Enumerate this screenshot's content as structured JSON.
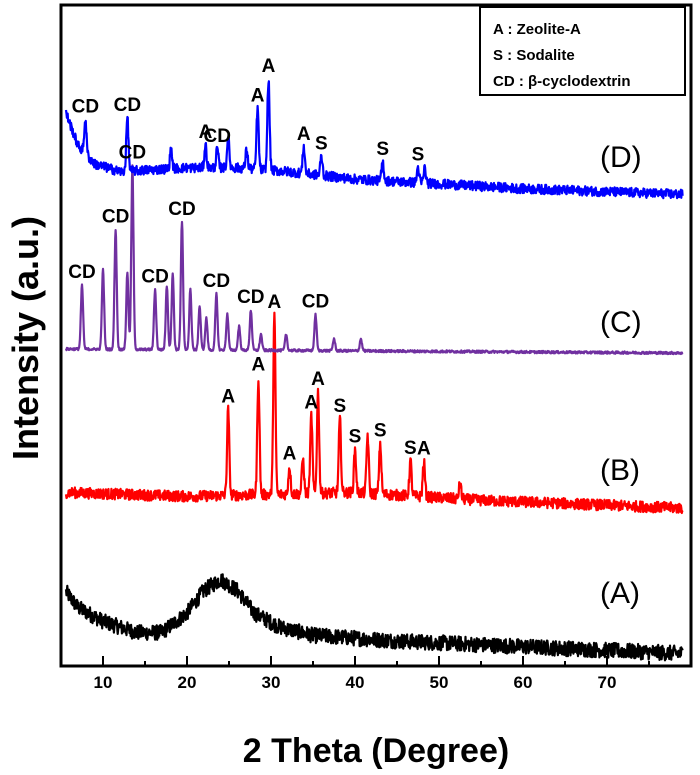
{
  "chart_data": {
    "type": "line",
    "xlabel": "2 Theta (Degree)",
    "ylabel": "Intensity (a.u.)",
    "xlim": [
      5,
      80
    ],
    "x_ticks": [
      "10",
      "20",
      "30",
      "40",
      "50",
      "60",
      "70"
    ],
    "y_ticks": "none",
    "grid": false,
    "legend": {
      "placement": "top-right",
      "entries": [
        "A : Zeolite-A",
        "S : Sodalite",
        "CD : β-cyclodextrin"
      ]
    },
    "series": [
      {
        "name": "(A)",
        "color": "#000000",
        "noise": 0.55,
        "baseline": [
          [
            5.5,
            2.3
          ],
          [
            7,
            1.7
          ],
          [
            10,
            1.2
          ],
          [
            14,
            0.8
          ],
          [
            17,
            0.8
          ],
          [
            20,
            1.5
          ],
          [
            22,
            2.3
          ],
          [
            24,
            2.7
          ],
          [
            26,
            2.3
          ],
          [
            28,
            1.5
          ],
          [
            31,
            1.0
          ],
          [
            35,
            0.7
          ],
          [
            45,
            0.5
          ],
          [
            60,
            0.3
          ],
          [
            79,
            0.05
          ]
        ],
        "peaks": []
      },
      {
        "name": "(B)",
        "color": "#ff0000",
        "noise": 0.28,
        "baseline": [
          [
            5.5,
            0.5
          ],
          [
            20,
            0.4
          ],
          [
            40,
            0.5
          ],
          [
            55,
            0.3
          ],
          [
            79,
            0.1
          ]
        ],
        "peaks": [
          {
            "x": 24.9,
            "h": 2.2,
            "label": "A"
          },
          {
            "x": 28.5,
            "h": 3.0,
            "label": "A"
          },
          {
            "x": 30.4,
            "h": 4.6,
            "label": "A"
          },
          {
            "x": 32.2,
            "h": 0.7,
            "label": "A"
          },
          {
            "x": 33.8,
            "h": 0.9
          },
          {
            "x": 34.8,
            "h": 2.0,
            "label": "A"
          },
          {
            "x": 35.6,
            "h": 2.6,
            "label": "A"
          },
          {
            "x": 38.2,
            "h": 1.9,
            "label": "S"
          },
          {
            "x": 40.0,
            "h": 1.1,
            "label": "S"
          },
          {
            "x": 41.5,
            "h": 1.5
          },
          {
            "x": 43.0,
            "h": 1.3,
            "label": "S"
          },
          {
            "x": 46.6,
            "h": 0.9,
            "label": "S"
          },
          {
            "x": 48.2,
            "h": 0.9,
            "label": "A"
          },
          {
            "x": 52.5,
            "h": 0.4
          }
        ]
      },
      {
        "name": "(C)",
        "color": "#7030a0",
        "noise": 0.06,
        "baseline": [
          [
            5.5,
            0.1
          ],
          [
            79,
            0.0
          ]
        ],
        "peaks": [
          {
            "x": 7.5,
            "h": 1.6,
            "label": "CD"
          },
          {
            "x": 10.0,
            "h": 2.0
          },
          {
            "x": 11.5,
            "h": 3.0,
            "label": "CD"
          },
          {
            "x": 12.9,
            "h": 1.9
          },
          {
            "x": 13.5,
            "h": 4.6,
            "label": "CD"
          },
          {
            "x": 16.2,
            "h": 1.5,
            "label": "CD"
          },
          {
            "x": 17.6,
            "h": 1.6
          },
          {
            "x": 18.3,
            "h": 1.9
          },
          {
            "x": 19.4,
            "h": 3.2,
            "label": "CD"
          },
          {
            "x": 20.4,
            "h": 1.5
          },
          {
            "x": 21.5,
            "h": 1.1
          },
          {
            "x": 22.3,
            "h": 0.8
          },
          {
            "x": 23.5,
            "h": 1.4,
            "label": "CD"
          },
          {
            "x": 24.8,
            "h": 0.9
          },
          {
            "x": 26.2,
            "h": 0.6
          },
          {
            "x": 27.6,
            "h": 1.0,
            "label": "CD"
          },
          {
            "x": 28.8,
            "h": 0.4
          },
          {
            "x": 31.8,
            "h": 0.4
          },
          {
            "x": 35.3,
            "h": 0.9,
            "label": "CD"
          },
          {
            "x": 37.5,
            "h": 0.3
          },
          {
            "x": 40.7,
            "h": 0.3
          }
        ]
      },
      {
        "name": "(D)",
        "color": "#0000ff",
        "noise": 0.25,
        "baseline": [
          [
            5.5,
            2.4
          ],
          [
            7,
            1.5
          ],
          [
            9,
            1.0
          ],
          [
            12,
            0.8
          ],
          [
            20,
            0.9
          ],
          [
            26,
            0.9
          ],
          [
            32,
            0.8
          ],
          [
            40,
            0.6
          ],
          [
            60,
            0.35
          ],
          [
            79,
            0.2
          ]
        ],
        "peaks": [
          {
            "x": 7.9,
            "h": 0.9,
            "label": "CD"
          },
          {
            "x": 12.9,
            "h": 1.4,
            "label": "CD"
          },
          {
            "x": 18.1,
            "h": 0.5
          },
          {
            "x": 22.2,
            "h": 0.6,
            "label": "A"
          },
          {
            "x": 23.6,
            "h": 0.5,
            "label": "CD"
          },
          {
            "x": 24.9,
            "h": 0.8
          },
          {
            "x": 27.1,
            "h": 0.5
          },
          {
            "x": 28.4,
            "h": 1.6,
            "label": "A"
          },
          {
            "x": 29.7,
            "h": 2.4,
            "label": "A"
          },
          {
            "x": 33.9,
            "h": 0.7,
            "label": "A"
          },
          {
            "x": 36.0,
            "h": 0.5,
            "label": "S"
          },
          {
            "x": 43.3,
            "h": 0.5,
            "label": "S"
          },
          {
            "x": 47.5,
            "h": 0.4,
            "label": "S"
          },
          {
            "x": 48.3,
            "h": 0.4
          }
        ]
      }
    ]
  }
}
